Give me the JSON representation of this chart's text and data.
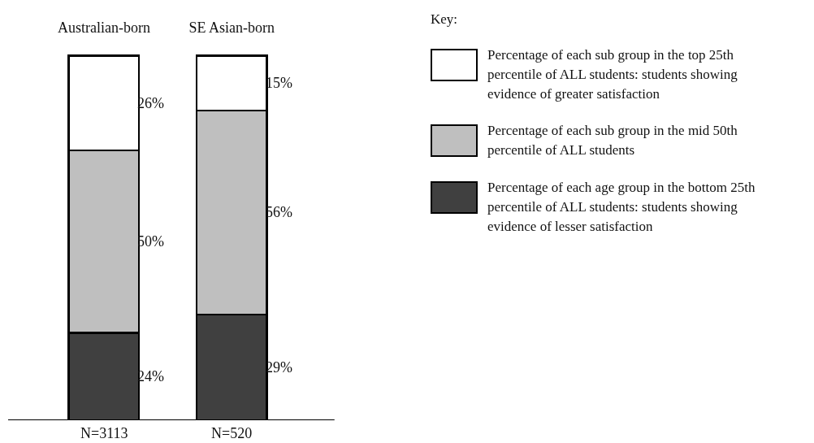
{
  "chart_data": {
    "type": "bar",
    "stacked": true,
    "categories": [
      "Australian-born",
      "SE Asian-born"
    ],
    "series": [
      {
        "name": "Percentage of each age group in the bottom 25th percentile of ALL students: students showing evidence of lesser satisfaction",
        "color": "#404040",
        "values": [
          24,
          29
        ],
        "value_labels": [
          "24%",
          "29%"
        ]
      },
      {
        "name": "Percentage of each sub group in the mid 50th percentile of ALL students",
        "color": "#bfbfbf",
        "values": [
          50,
          56
        ],
        "value_labels": [
          "50%",
          "56%"
        ]
      },
      {
        "name": "Percentage of each sub group in the top 25th percentile of ALL students: students showing evidence of greater satisfaction",
        "color": "#ffffff",
        "values": [
          26,
          15
        ],
        "value_labels": [
          "26%",
          "15%"
        ]
      }
    ],
    "legend": "right",
    "legend_title": "Key:",
    "annotations": [
      "N=3113",
      "N=520"
    ]
  }
}
